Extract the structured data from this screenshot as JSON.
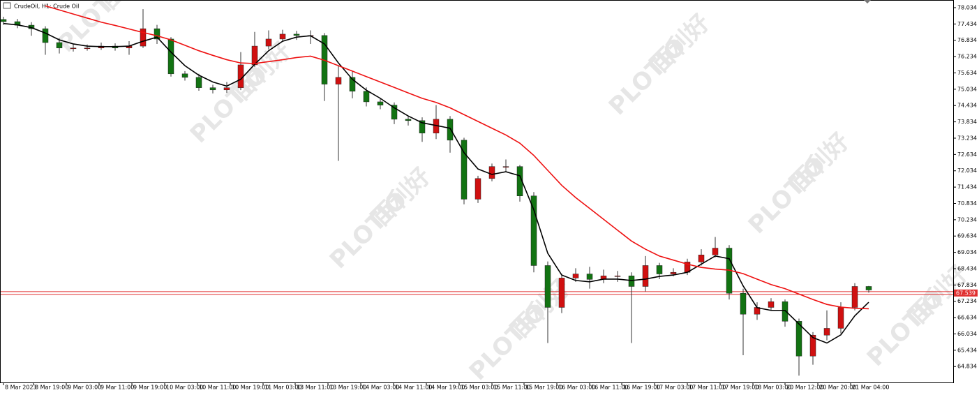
{
  "chart_data": {
    "type": "candlestick",
    "title": "CrudeOil, H1:  Crude Oil",
    "watermark": [
      "PLOTIO",
      "百利好"
    ],
    "up_color": "#d01010",
    "down_color": "#127312",
    "open": [
      77.6,
      77.52,
      77.39,
      77.26,
      76.75,
      76.55,
      76.55,
      76.55,
      76.62,
      76.55,
      76.62,
      77.26,
      76.88,
      75.6,
      75.47,
      75.09,
      75.01,
      75.09,
      75.93,
      76.62,
      76.88,
      77.06,
      77.01,
      77.01,
      75.22,
      75.47,
      74.96,
      74.57,
      74.45,
      73.93,
      73.88,
      73.42,
      73.93,
      73.16,
      70.99,
      71.75,
      72.19,
      72.19,
      71.11,
      68.55,
      67.01,
      68.09,
      68.24,
      68.04,
      68.17,
      68.17,
      67.78,
      68.55,
      68.24,
      68.3,
      68.68,
      68.94,
      69.19,
      67.53,
      66.76,
      67.01,
      67.22,
      66.5,
      65.22,
      65.99,
      66.24,
      67.01,
      67.78
    ],
    "high": [
      77.7,
      77.62,
      77.5,
      77.35,
      76.9,
      76.7,
      76.68,
      76.75,
      76.72,
      76.8,
      77.98,
      77.4,
      76.95,
      75.7,
      75.6,
      75.2,
      75.3,
      76.4,
      77.14,
      77.2,
      77.22,
      77.18,
      77.2,
      77.1,
      75.9,
      75.7,
      75.1,
      74.7,
      74.55,
      74.05,
      74.0,
      74.45,
      74.05,
      73.25,
      71.85,
      72.3,
      72.45,
      72.25,
      71.25,
      68.7,
      68.25,
      68.45,
      68.5,
      68.4,
      68.35,
      68.3,
      68.9,
      68.65,
      68.45,
      68.8,
      69.15,
      69.6,
      69.3,
      67.7,
      67.2,
      67.35,
      67.3,
      66.6,
      66.1,
      66.9,
      67.2,
      67.9,
      67.8
    ],
    "low": [
      77.4,
      77.28,
      77.0,
      76.3,
      76.35,
      76.42,
      76.45,
      76.48,
      76.45,
      76.3,
      76.55,
      76.7,
      75.5,
      75.35,
      74.98,
      74.88,
      74.9,
      75.0,
      75.85,
      76.5,
      76.8,
      76.85,
      76.7,
      74.6,
      72.4,
      74.7,
      74.4,
      74.3,
      73.75,
      73.7,
      73.1,
      73.2,
      72.7,
      70.8,
      70.85,
      71.65,
      72.0,
      70.9,
      68.3,
      65.7,
      66.8,
      67.95,
      67.7,
      67.9,
      67.95,
      65.7,
      67.6,
      68.05,
      68.15,
      68.2,
      68.55,
      68.85,
      67.3,
      65.25,
      66.55,
      66.9,
      66.3,
      64.5,
      64.9,
      65.8,
      66.05,
      66.9,
      67.55
    ],
    "close": [
      77.52,
      77.39,
      77.26,
      76.75,
      76.55,
      76.55,
      76.55,
      76.62,
      76.55,
      76.62,
      77.26,
      76.88,
      75.6,
      75.47,
      75.09,
      75.01,
      75.09,
      75.93,
      76.62,
      76.88,
      77.06,
      77.01,
      77.01,
      75.22,
      75.47,
      74.96,
      74.57,
      74.45,
      73.93,
      73.88,
      73.42,
      73.93,
      73.16,
      70.99,
      71.75,
      72.19,
      72.19,
      71.11,
      68.55,
      67.01,
      68.09,
      68.24,
      68.04,
      68.17,
      68.17,
      67.78,
      68.55,
      68.24,
      68.3,
      68.68,
      68.94,
      69.19,
      67.53,
      66.76,
      67.01,
      67.22,
      66.5,
      65.22,
      65.99,
      66.24,
      67.01,
      67.78,
      67.65
    ],
    "ma_lines": [
      {
        "color": "#000000",
        "values": [
          77.45,
          77.4,
          77.3,
          77.1,
          76.85,
          76.7,
          76.62,
          76.6,
          76.6,
          76.62,
          76.8,
          76.95,
          76.4,
          75.9,
          75.55,
          75.3,
          75.15,
          75.4,
          75.95,
          76.45,
          76.8,
          76.95,
          77.0,
          76.7,
          76.0,
          75.4,
          75.0,
          74.7,
          74.35,
          74.05,
          73.8,
          73.7,
          73.6,
          72.7,
          72.1,
          71.9,
          72.0,
          71.85,
          70.6,
          69.0,
          68.2,
          68.0,
          67.95,
          68.05,
          68.05,
          68.0,
          68.05,
          68.15,
          68.2,
          68.3,
          68.6,
          68.9,
          68.8,
          67.8,
          67.0,
          66.9,
          66.9,
          66.4,
          65.9,
          65.7,
          66.0,
          66.7,
          67.2
        ]
      },
      {
        "color": "#ee1111",
        "values": [
          null,
          null,
          null,
          78.1,
          77.95,
          77.8,
          77.65,
          77.5,
          77.38,
          77.25,
          77.12,
          77.0,
          76.85,
          76.65,
          76.45,
          76.28,
          76.12,
          76.0,
          75.98,
          76.05,
          76.12,
          76.2,
          76.25,
          76.1,
          75.9,
          75.7,
          75.5,
          75.3,
          75.1,
          74.9,
          74.7,
          74.55,
          74.35,
          74.1,
          73.85,
          73.6,
          73.35,
          73.05,
          72.6,
          72.05,
          71.5,
          71.05,
          70.65,
          70.25,
          69.85,
          69.45,
          69.15,
          68.9,
          68.75,
          68.6,
          68.48,
          68.42,
          68.38,
          68.25,
          68.05,
          67.85,
          67.7,
          67.5,
          67.3,
          67.12,
          67.02,
          66.98,
          66.96
        ]
      }
    ],
    "current_price": 67.539,
    "ylim": [
      64.25,
      78.29
    ],
    "yticks": [
      78.034,
      77.434,
      76.834,
      76.234,
      75.634,
      75.034,
      74.434,
      73.834,
      73.234,
      72.634,
      72.034,
      71.434,
      70.834,
      70.234,
      69.634,
      69.034,
      68.434,
      67.834,
      67.234,
      66.634,
      66.034,
      65.434,
      64.834
    ],
    "xticks": [
      {
        "value": 0,
        "label": "8 Mar 2023"
      },
      {
        "value": 2.15,
        "label": "8 Mar 19:00"
      },
      {
        "value": 4.5,
        "label": "9 Mar 03:00"
      },
      {
        "value": 6.85,
        "label": "9 Mar 11:00"
      },
      {
        "value": 9.2,
        "label": "9 Mar 19:00"
      },
      {
        "value": 11.55,
        "label": "10 Mar 03:00"
      },
      {
        "value": 13.9,
        "label": "10 Mar 11:00"
      },
      {
        "value": 16.25,
        "label": "10 Mar 19:00"
      },
      {
        "value": 18.6,
        "label": "11 Mar 03:00"
      },
      {
        "value": 20.9,
        "label": "13 Mar 11:00"
      },
      {
        "value": 23.25,
        "label": "13 Mar 19:00"
      },
      {
        "value": 25.6,
        "label": "14 Mar 03:00"
      },
      {
        "value": 27.95,
        "label": "14 Mar 11:00"
      },
      {
        "value": 30.3,
        "label": "14 Mar 19:00"
      },
      {
        "value": 32.65,
        "label": "15 Mar 03:00"
      },
      {
        "value": 35,
        "label": "15 Mar 11:00"
      },
      {
        "value": 37.3,
        "label": "15 Mar 19:00"
      },
      {
        "value": 39.65,
        "label": "16 Mar 03:00"
      },
      {
        "value": 42,
        "label": "16 Mar 11:00"
      },
      {
        "value": 44.3,
        "label": "16 Mar 19:00"
      },
      {
        "value": 46.65,
        "label": "17 Mar 03:00"
      },
      {
        "value": 49,
        "label": "17 Mar 11:00"
      },
      {
        "value": 51.35,
        "label": "17 Mar 19:00"
      },
      {
        "value": 53.7,
        "label": "18 Mar 03:00"
      },
      {
        "value": 56,
        "label": "20 Mar 12:00"
      },
      {
        "value": 58.35,
        "label": "20 Mar 20:00"
      },
      {
        "value": 60.7,
        "label": "21 Mar 04:00"
      }
    ]
  }
}
